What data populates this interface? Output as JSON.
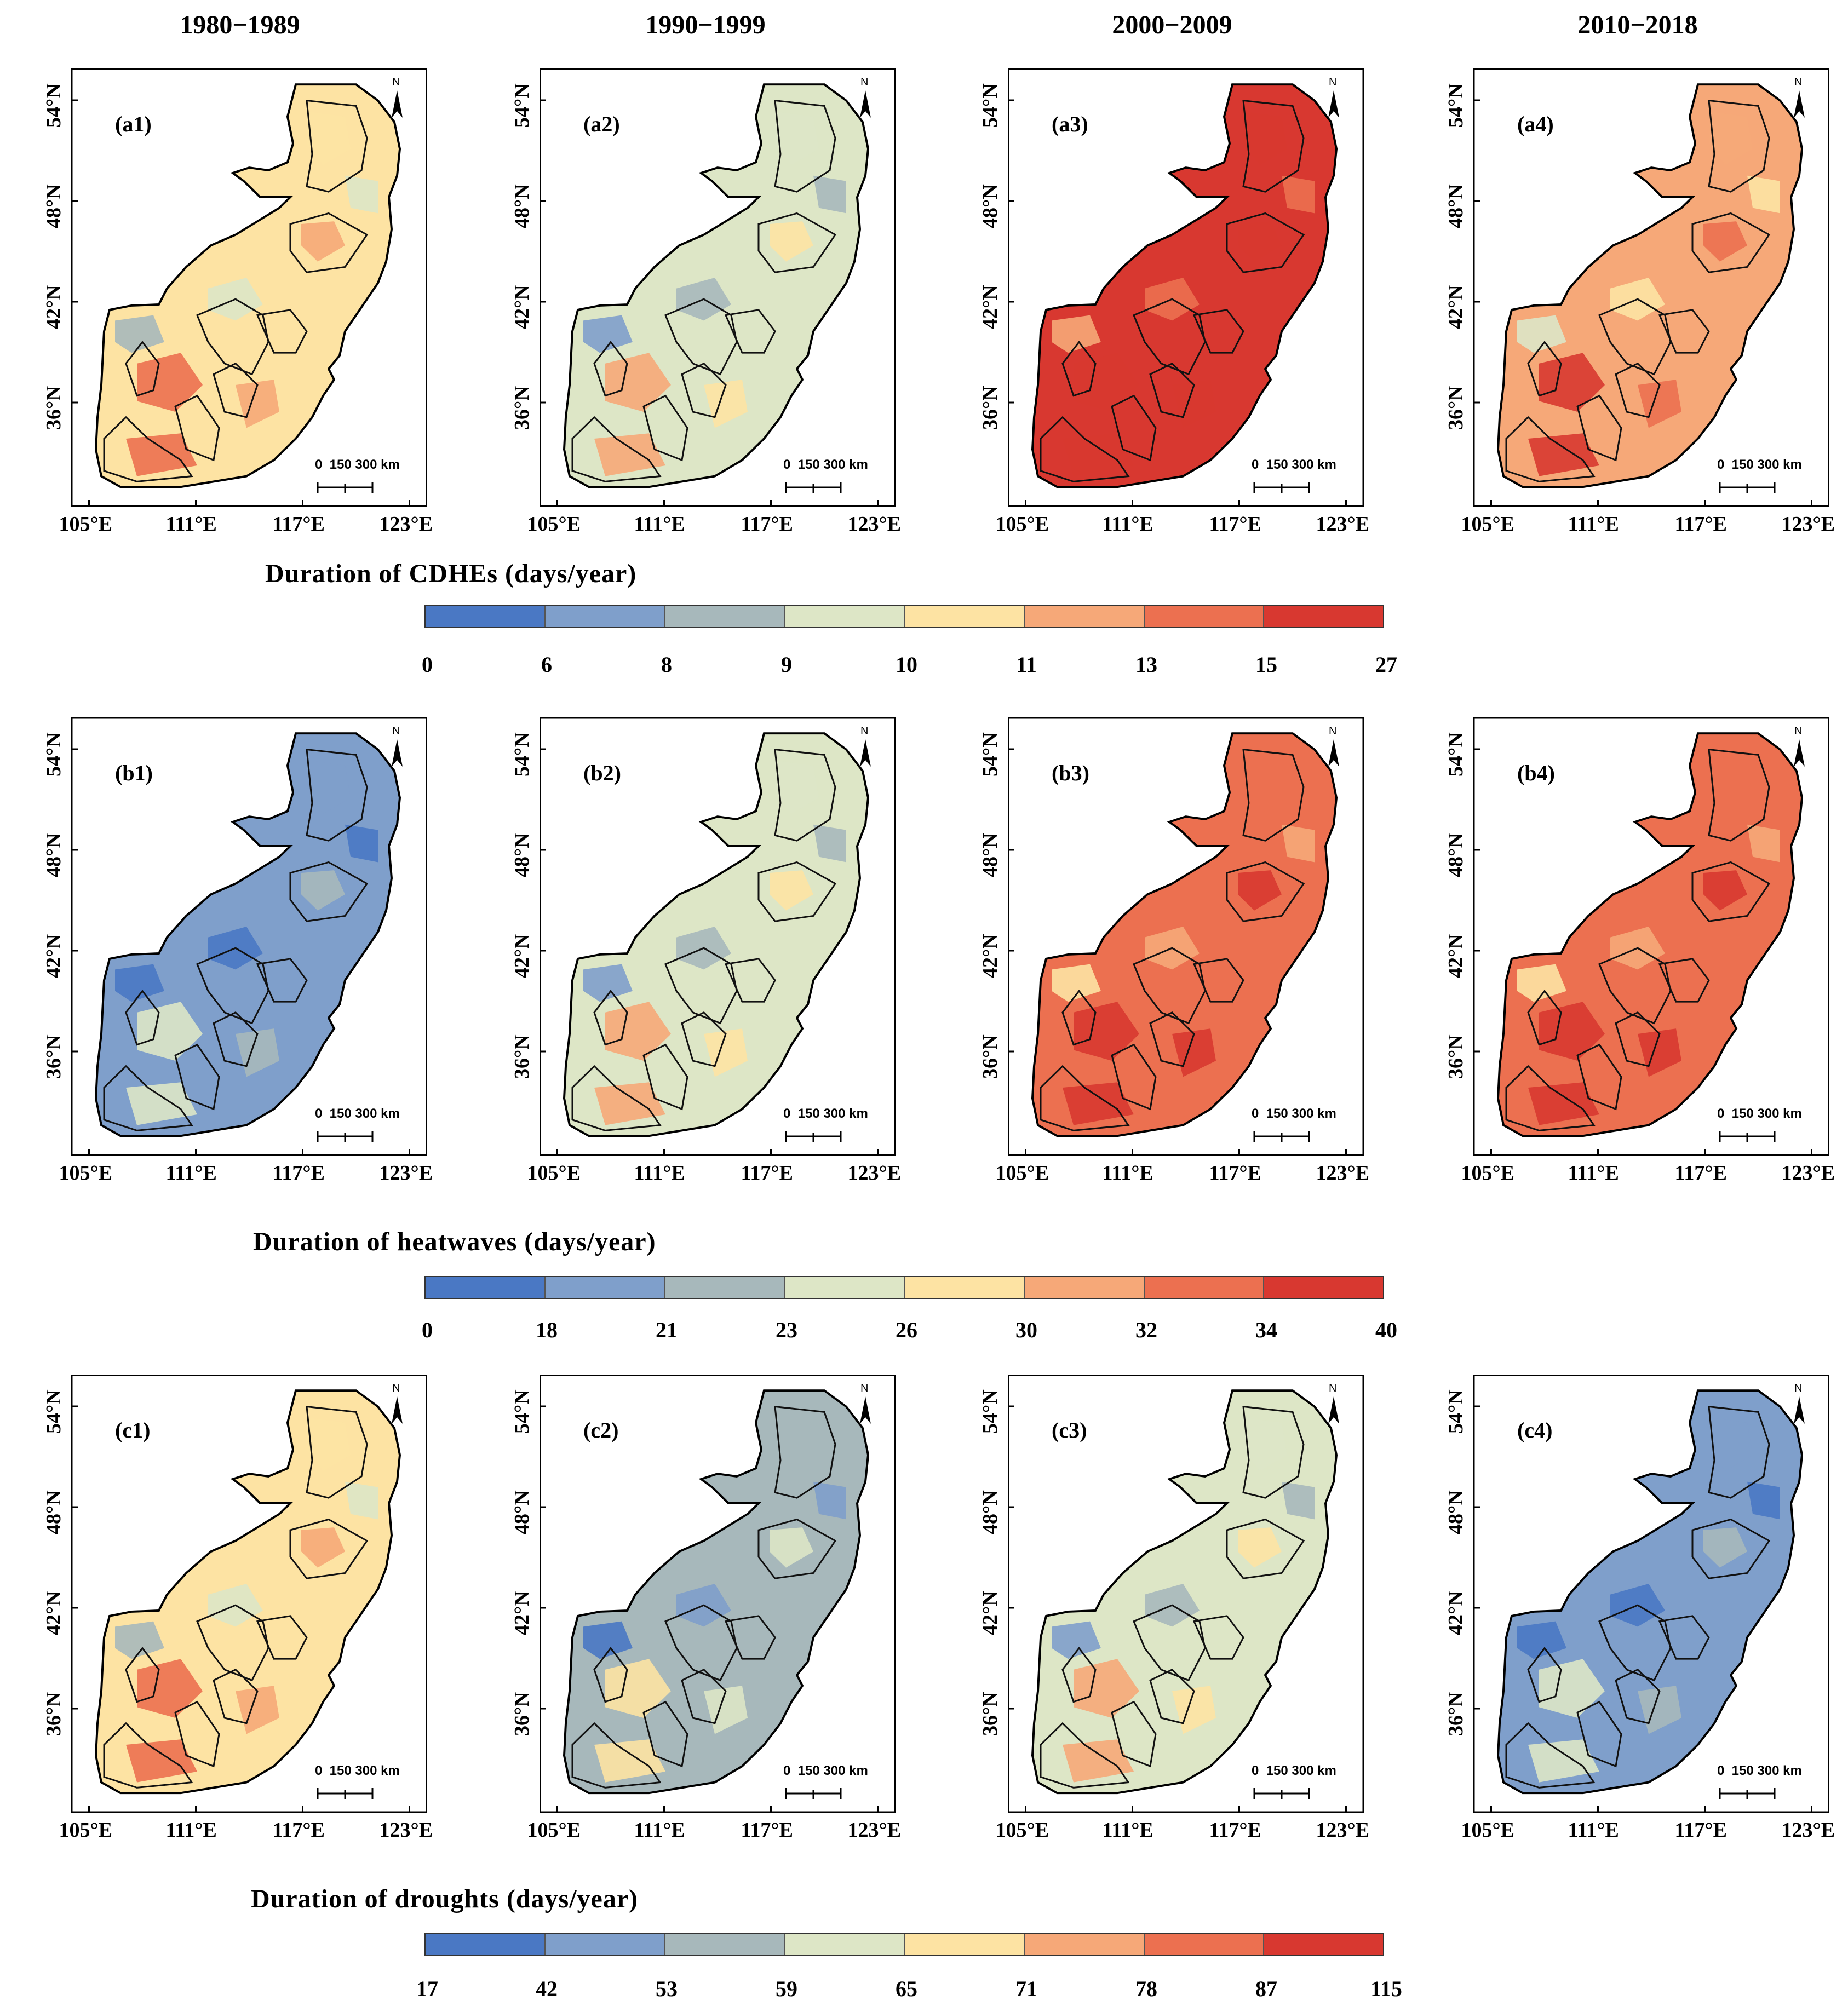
{
  "periods": [
    "1980−1989",
    "1990−1999",
    "2000−2009",
    "2010−2018"
  ],
  "axis_labels": {
    "lat": [
      "54°N",
      "48°N",
      "42°N",
      "36°N"
    ],
    "lon": [
      "105°E",
      "111°E",
      "117°E",
      "123°E"
    ]
  },
  "north_arrow_letter": "N",
  "scale_bar_text": "0  150 300 km",
  "colors": [
    "#4a78c4",
    "#7f9fcb",
    "#a7b8bb",
    "#dde6c6",
    "#fde3a3",
    "#f6a878",
    "#ec7050",
    "#d83830"
  ],
  "rows": [
    {
      "title": "Duration of CDHEs (days/year)",
      "legend_ticks": [
        "0",
        "6",
        "8",
        "9",
        "10",
        "11",
        "13",
        "15",
        "27"
      ],
      "panels": [
        {
          "label": "(a1)",
          "class_index": 4
        },
        {
          "label": "(a2)",
          "class_index": 3
        },
        {
          "label": "(a3)",
          "class_index": 7
        },
        {
          "label": "(a4)",
          "class_index": 5
        }
      ]
    },
    {
      "title": "Duration of heatwaves (days/year)",
      "legend_ticks": [
        "0",
        "18",
        "21",
        "23",
        "26",
        "30",
        "32",
        "34",
        "40"
      ],
      "panels": [
        {
          "label": "(b1)",
          "class_index": 1
        },
        {
          "label": "(b2)",
          "class_index": 3
        },
        {
          "label": "(b3)",
          "class_index": 6
        },
        {
          "label": "(b4)",
          "class_index": 6
        }
      ]
    },
    {
      "title": "Duration of droughts (days/year)",
      "legend_ticks": [
        "17",
        "42",
        "53",
        "59",
        "65",
        "71",
        "78",
        "87",
        "115"
      ],
      "panels": [
        {
          "label": "(c1)",
          "class_index": 4
        },
        {
          "label": "(c2)",
          "class_index": 2
        },
        {
          "label": "(c3)",
          "class_index": 3
        },
        {
          "label": "(c4)",
          "class_index": 1
        }
      ]
    }
  ]
}
